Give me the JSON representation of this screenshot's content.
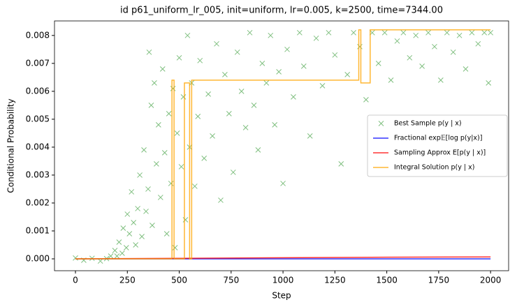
{
  "chart_data": {
    "type": "combo",
    "title": "id p61_uniform_lr_005, init=uniform, lr=0.005, k=2500, time=7344.00",
    "xlabel": "Step",
    "ylabel": "Conditional Probability",
    "xlim": [
      -101,
      2087
    ],
    "ylim": [
      -0.000425,
      0.00852
    ],
    "xticks": [
      0,
      250,
      500,
      750,
      1000,
      1250,
      1500,
      1750,
      2000
    ],
    "yticks": [
      {
        "value": 0,
        "label": "0.000"
      },
      {
        "value": 0.001,
        "label": "0.001"
      },
      {
        "value": 0.002,
        "label": "0.002"
      },
      {
        "value": 0.003,
        "label": "0.003"
      },
      {
        "value": 0.004,
        "label": "0.004"
      },
      {
        "value": 0.005,
        "label": "0.005"
      },
      {
        "value": 0.006,
        "label": "0.006"
      },
      {
        "value": 0.007,
        "label": "0.007"
      },
      {
        "value": 0.008,
        "label": "0.008"
      }
    ],
    "legend": "center right",
    "grid": false,
    "series": [
      {
        "name": "Best Sample p(y | x)",
        "type": "scatter",
        "color": "#008000",
        "x": [
          0,
          40,
          80,
          120,
          150,
          170,
          190,
          200,
          210,
          225,
          230,
          245,
          250,
          260,
          270,
          280,
          290,
          300,
          310,
          320,
          330,
          340,
          350,
          355,
          365,
          370,
          380,
          390,
          400,
          410,
          420,
          430,
          440,
          450,
          460,
          470,
          480,
          490,
          500,
          510,
          520,
          530,
          540,
          550,
          560,
          575,
          590,
          600,
          620,
          640,
          660,
          680,
          700,
          720,
          740,
          760,
          780,
          800,
          820,
          840,
          860,
          880,
          900,
          920,
          940,
          960,
          980,
          1000,
          1020,
          1050,
          1080,
          1100,
          1130,
          1160,
          1190,
          1220,
          1250,
          1280,
          1310,
          1340,
          1370,
          1400,
          1430,
          1460,
          1490,
          1520,
          1550,
          1580,
          1610,
          1640,
          1670,
          1700,
          1730,
          1760,
          1790,
          1820,
          1850,
          1880,
          1910,
          1940,
          1970,
          1990,
          2000
        ],
        "values": [
          3e-05,
          -5e-05,
          2e-05,
          -8e-05,
          1e-05,
          0.0001,
          0.0003,
          0.0001,
          0.0006,
          0.0002,
          0.0011,
          0.0004,
          0.0016,
          0.0009,
          0.0024,
          0.0013,
          0.0005,
          0.0018,
          0.003,
          0.0008,
          0.0039,
          0.0017,
          0.0025,
          0.0074,
          0.0055,
          0.0012,
          0.0063,
          0.0034,
          0.0048,
          0.0022,
          0.0068,
          0.0038,
          0.0009,
          0.0052,
          0.0027,
          0.0061,
          0.0004,
          0.0045,
          0.0072,
          0.0033,
          0.0058,
          0.0014,
          0.008,
          0.004,
          0.0063,
          0.0026,
          0.0051,
          0.0071,
          0.0036,
          0.0059,
          0.0044,
          0.0077,
          0.0021,
          0.0066,
          0.0052,
          0.0031,
          0.0074,
          0.006,
          0.0047,
          0.0081,
          0.0055,
          0.0039,
          0.007,
          0.0063,
          0.008,
          0.0048,
          0.0067,
          0.0027,
          0.0075,
          0.0058,
          0.0081,
          0.0069,
          0.0044,
          0.0079,
          0.0062,
          0.0081,
          0.0073,
          0.0034,
          0.0066,
          0.0081,
          0.0076,
          0.0057,
          0.0081,
          0.007,
          0.0081,
          0.0064,
          0.0078,
          0.0081,
          0.0072,
          0.008,
          0.0069,
          0.0081,
          0.0076,
          0.0064,
          0.0081,
          0.0074,
          0.008,
          0.0068,
          0.0081,
          0.0077,
          0.0081,
          0.0063,
          0.0081
        ]
      },
      {
        "name": "Fractional exp𝔼[log p(y|x)]",
        "type": "line",
        "color": "#0000ff",
        "x": [
          0,
          2000
        ],
        "values": [
          0,
          0
        ]
      },
      {
        "name": "Sampling Approx E[p(y | x)]",
        "type": "line",
        "color": "#ff0000",
        "x": [
          0,
          500,
          1000,
          1500,
          2000
        ],
        "values": [
          0,
          2e-05,
          4e-05,
          6e-05,
          7e-05
        ]
      },
      {
        "name": "Integral Solution p(y | x)",
        "type": "line",
        "color": "#ffa500",
        "x": [
          0,
          465,
          465,
          475,
          475,
          525,
          525,
          550,
          550,
          560,
          560,
          1365,
          1365,
          1375,
          1375,
          1420,
          1420,
          2000
        ],
        "values": [
          0,
          0,
          0.0064,
          0.0064,
          0,
          0,
          0.0063,
          0.0063,
          0,
          0,
          0.0064,
          0.0064,
          0.0082,
          0.0082,
          0.0063,
          0.0063,
          0.0082,
          0.0082
        ]
      }
    ]
  }
}
